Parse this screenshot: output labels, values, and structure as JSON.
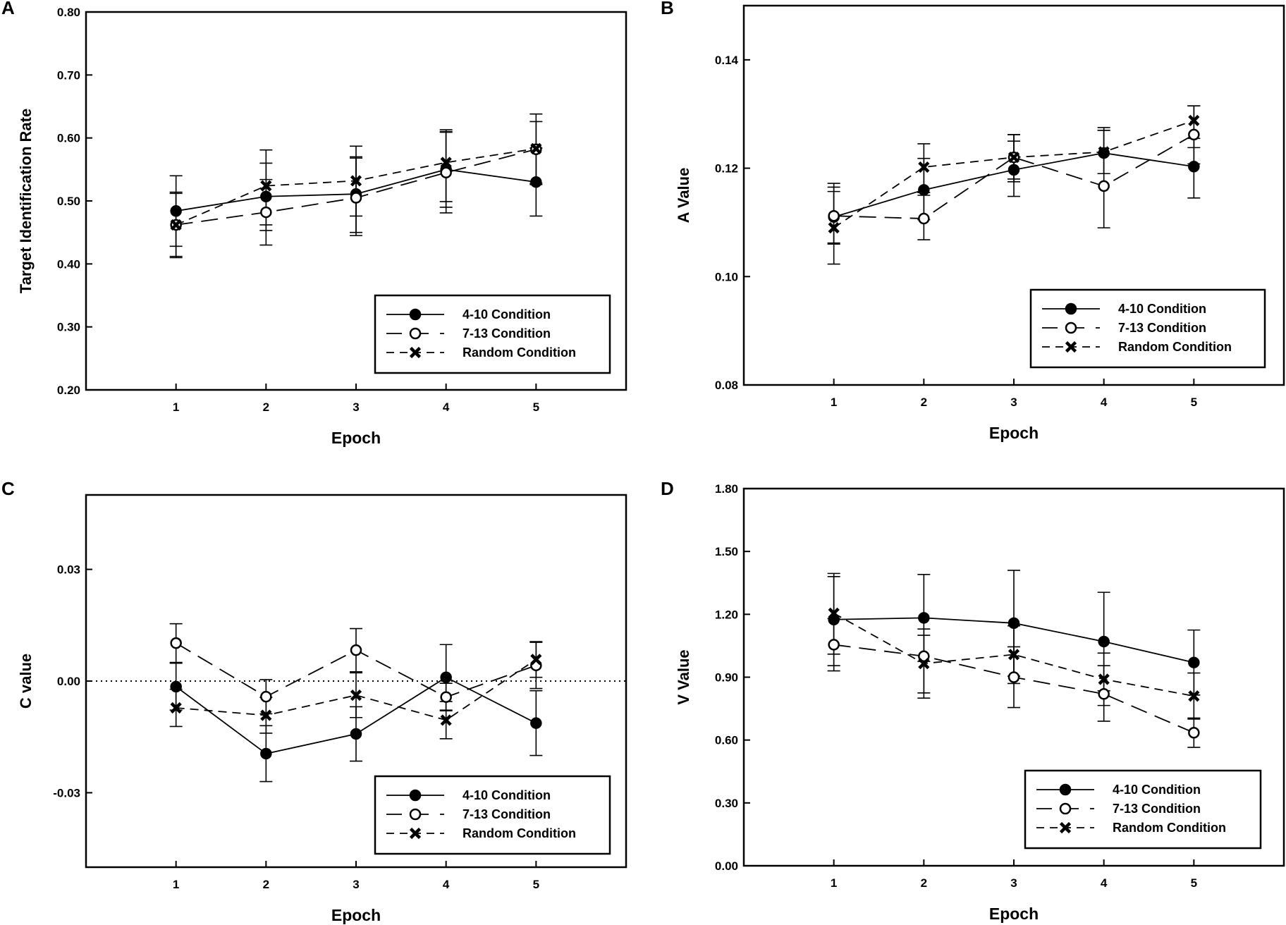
{
  "chart_data": [
    {
      "panel": "A",
      "type": "line",
      "ylabel": "Target Identification Rate",
      "xlabel": "Epoch",
      "categories": [
        "1",
        "2",
        "3",
        "4",
        "5"
      ],
      "ylim": [
        0.2,
        0.8
      ],
      "yticks": [
        "0.20",
        "0.30",
        "0.40",
        "0.50",
        "0.60",
        "0.70",
        "0.80"
      ],
      "zero_line": false,
      "legend": "bottom-right",
      "series": [
        {
          "name": "4-10 Condition",
          "marker": "filled-circle",
          "dash": "solid",
          "values": [
            0.484,
            0.507,
            0.511,
            0.55,
            0.53
          ],
          "err_low": [
            0.428,
            0.453,
            0.45,
            0.49,
            0.476
          ],
          "err_high": [
            0.54,
            0.56,
            0.57,
            0.61,
            0.584
          ]
        },
        {
          "name": "7-13 Condition",
          "marker": "open-circle",
          "dash": "long-dash",
          "values": [
            0.462,
            0.482,
            0.505,
            0.545,
            0.582
          ],
          "err_low": [
            0.412,
            0.43,
            0.445,
            0.481,
            0.526
          ],
          "err_high": [
            0.512,
            0.534,
            0.568,
            0.609,
            0.638
          ]
        },
        {
          "name": "Random Condition",
          "marker": "x",
          "dash": "short-dash",
          "values": [
            0.462,
            0.524,
            0.532,
            0.561,
            0.583
          ],
          "err_low": [
            0.41,
            0.462,
            0.476,
            0.499,
            0.528
          ],
          "err_high": [
            0.514,
            0.581,
            0.587,
            0.613,
            0.626
          ]
        }
      ]
    },
    {
      "panel": "B",
      "type": "line",
      "ylabel": "A Value",
      "xlabel": "Epoch",
      "categories": [
        "1",
        "2",
        "3",
        "4",
        "5"
      ],
      "ylim": [
        0.08,
        0.15
      ],
      "yticks": [
        "0.08",
        "0.10",
        "0.12",
        "0.14"
      ],
      "zero_line": false,
      "legend": "bottom-right",
      "series": [
        {
          "name": "4-10 Condition",
          "marker": "filled-circle",
          "dash": "solid",
          "values": [
            0.111,
            0.116,
            0.1197,
            0.1228,
            0.1203
          ],
          "err_low": [
            0.106,
            0.1105,
            0.1148,
            0.119,
            0.1145
          ],
          "err_high": [
            0.1165,
            0.1218,
            0.125,
            0.127,
            0.1255
          ]
        },
        {
          "name": "7-13 Condition",
          "marker": "open-circle",
          "dash": "long-dash",
          "values": [
            0.1112,
            0.1107,
            0.122,
            0.1167,
            0.1262
          ],
          "err_low": [
            0.1062,
            0.1068,
            0.118,
            0.109,
            0.1208
          ],
          "err_high": [
            0.1172,
            0.115,
            0.1262,
            0.1275,
            0.1315
          ]
        },
        {
          "name": "Random Condition",
          "marker": "x",
          "dash": "short-dash",
          "values": [
            0.109,
            0.1202,
            0.122,
            0.123,
            0.1288
          ],
          "err_low": [
            0.1023,
            0.1155,
            0.1175,
            0.119,
            0.1238
          ],
          "err_high": [
            0.1157,
            0.1245,
            0.1262,
            0.127,
            0.1315
          ]
        }
      ]
    },
    {
      "panel": "C",
      "type": "line",
      "ylabel": "C value",
      "xlabel": "Epoch",
      "categories": [
        "1",
        "2",
        "3",
        "4",
        "5"
      ],
      "ylim": [
        -0.05,
        0.05
      ],
      "yticks": [
        "-0.03",
        "0.00",
        "0.03"
      ],
      "ytick_values": [
        -0.03,
        0.0,
        0.03
      ],
      "zero_line": true,
      "legend": "bottom-right",
      "series": [
        {
          "name": "4-10 Condition",
          "marker": "filled-circle",
          "dash": "solid",
          "values": [
            -0.0015,
            -0.0195,
            -0.0142,
            0.001,
            -0.0113
          ],
          "err_low": [
            -0.0078,
            -0.027,
            -0.0215,
            -0.0078,
            -0.02
          ],
          "err_high": [
            0.0048,
            -0.012,
            -0.0069,
            0.0098,
            -0.0026
          ]
        },
        {
          "name": "7-13 Condition",
          "marker": "open-circle",
          "dash": "long-dash",
          "values": [
            0.0102,
            -0.0042,
            0.0083,
            -0.0043,
            0.0042
          ],
          "err_low": [
            0.005,
            -0.0088,
            0.0025,
            -0.008,
            -0.002
          ],
          "err_high": [
            0.0154,
            0.0004,
            0.0141,
            -0.0006,
            0.0104
          ]
        },
        {
          "name": "Random Condition",
          "marker": "x",
          "dash": "short-dash",
          "values": [
            -0.0072,
            -0.0092,
            -0.0038,
            -0.0105,
            0.0058
          ],
          "err_low": [
            -0.0122,
            -0.014,
            -0.0098,
            -0.0155,
            0.001
          ],
          "err_high": [
            -0.0022,
            -0.0044,
            0.0022,
            -0.0055,
            0.0106
          ]
        }
      ]
    },
    {
      "panel": "D",
      "type": "line",
      "ylabel": "V Value",
      "xlabel": "Epoch",
      "categories": [
        "1",
        "2",
        "3",
        "4",
        "5"
      ],
      "ylim": [
        0.0,
        1.8
      ],
      "yticks": [
        "0.00",
        "0.30",
        "0.60",
        "0.90",
        "1.20",
        "1.50",
        "1.80"
      ],
      "zero_line": false,
      "legend": "bottom-right",
      "series": [
        {
          "name": "4-10 Condition",
          "marker": "filled-circle",
          "dash": "solid",
          "values": [
            1.175,
            1.183,
            1.158,
            1.07,
            0.97
          ],
          "err_low": [
            0.955,
            0.975,
            0.905,
            0.835,
            0.815
          ],
          "err_high": [
            1.395,
            1.39,
            1.41,
            1.305,
            1.125
          ]
        },
        {
          "name": "7-13 Condition",
          "marker": "open-circle",
          "dash": "long-dash",
          "values": [
            1.055,
            1.0,
            0.9,
            0.82,
            0.635
          ],
          "err_low": [
            0.93,
            0.8,
            0.755,
            0.69,
            0.565
          ],
          "err_high": [
            1.18,
            1.13,
            1.045,
            0.955,
            0.705
          ]
        },
        {
          "name": "Random Condition",
          "marker": "x",
          "dash": "short-dash",
          "values": [
            1.205,
            0.965,
            1.008,
            0.89,
            0.81
          ],
          "err_low": [
            1.01,
            0.825,
            0.87,
            0.765,
            0.7
          ],
          "err_high": [
            1.38,
            1.1,
            1.145,
            1.015,
            0.92
          ]
        }
      ]
    }
  ]
}
